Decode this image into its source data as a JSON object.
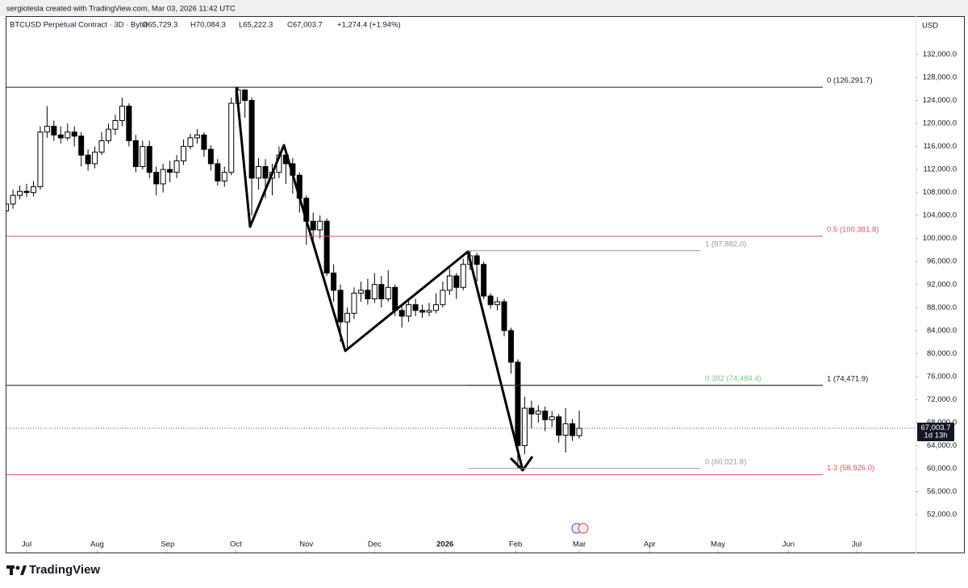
{
  "chart_data": {
    "type": "candlestick",
    "attribution": "sergiotesla created with TradingView.com, Mar 03, 2026 11:42 UTC",
    "title": "BTCUSD Perpetual Contract · 3D · Bybit",
    "ohlc_text": [
      "O65,729.3",
      "H70,084.3",
      "L65,222.3",
      "C67,003.7",
      "+1,274.4 (+1.94%)"
    ],
    "currency": "USD",
    "brand": "TradingView",
    "x": [
      -9,
      -6,
      -3,
      0,
      3,
      6,
      9,
      12,
      15,
      18,
      21,
      24,
      27,
      30,
      33,
      36,
      39,
      42,
      45,
      48,
      51,
      54,
      57,
      60,
      63,
      66,
      69,
      72,
      75,
      78,
      81,
      84,
      87,
      90,
      93,
      96,
      99,
      102,
      105,
      108,
      111,
      114,
      117,
      120,
      123,
      126,
      129,
      132,
      135,
      138,
      141,
      144,
      147,
      150,
      153,
      156,
      159,
      162,
      165,
      168,
      171,
      174,
      177,
      180,
      183,
      186,
      189,
      192,
      195,
      198,
      201,
      204,
      207,
      210,
      213,
      216,
      219,
      222,
      225,
      228,
      231,
      234,
      237,
      240,
      243
    ],
    "open": [
      104800,
      106000,
      107500,
      108200,
      108000,
      109000,
      118500,
      119500,
      118000,
      117500,
      118500,
      117800,
      114500,
      113000,
      115000,
      117000,
      119000,
      120500,
      123000,
      117000,
      112500,
      116000,
      111500,
      109500,
      112000,
      111500,
      113500,
      116000,
      117500,
      118000,
      115500,
      113000,
      110000,
      111500,
      123500,
      125800,
      124000,
      110500,
      112500,
      110500,
      111500,
      114500,
      113000,
      111000,
      107000,
      103000,
      101500,
      103000,
      94000,
      91000,
      85500,
      87000,
      90500,
      91000,
      89500,
      92000,
      89500,
      91500,
      87500,
      86500,
      88500,
      87500,
      87200,
      87500,
      88500,
      91000,
      93500,
      91500,
      95500,
      97000,
      95500,
      90000,
      88500,
      89000,
      84000,
      78500,
      64000,
      70500,
      69500,
      70000,
      68500,
      69000,
      65800,
      67800,
      65729.3
    ],
    "high": [
      106800,
      108500,
      109200,
      109500,
      110000,
      119500,
      123000,
      120500,
      119500,
      120000,
      119500,
      118500,
      115500,
      116000,
      118500,
      120000,
      121500,
      124500,
      123500,
      118000,
      117000,
      117000,
      112500,
      113000,
      113500,
      114500,
      117200,
      118200,
      119000,
      118500,
      116200,
      113800,
      112500,
      124500,
      126291.7,
      126000,
      124500,
      114000,
      113800,
      113000,
      116000,
      115500,
      114000,
      111500,
      107500,
      104500,
      104000,
      103500,
      95500,
      92000,
      88000,
      91500,
      92500,
      93000,
      94000,
      93500,
      94500,
      92000,
      88500,
      89500,
      89500,
      88500,
      88800,
      90500,
      92500,
      94800,
      94000,
      96500,
      97882,
      97500,
      96000,
      90500,
      89800,
      89500,
      84500,
      79000,
      72500,
      71800,
      71000,
      70800,
      70000,
      69500,
      70500,
      68600,
      70084.3
    ],
    "low": [
      104000,
      105200,
      106800,
      107200,
      107300,
      108500,
      117500,
      117000,
      116500,
      117000,
      116000,
      112500,
      111800,
      112200,
      114500,
      116500,
      118000,
      119500,
      116000,
      111500,
      112000,
      110500,
      107500,
      108000,
      109800,
      110500,
      112800,
      115500,
      116500,
      114200,
      111800,
      109200,
      109000,
      111000,
      122500,
      121000,
      104000,
      108500,
      107000,
      107500,
      110500,
      109500,
      107800,
      104500,
      98900,
      99500,
      100000,
      93500,
      89000,
      82000,
      80600,
      86000,
      89000,
      88500,
      88800,
      88000,
      89000,
      86500,
      84500,
      85500,
      86500,
      86200,
      86500,
      87000,
      88000,
      90200,
      89500,
      91000,
      94500,
      92500,
      89500,
      87800,
      87500,
      83000,
      76500,
      60021.8,
      62500,
      67000,
      68000,
      66500,
      67200,
      64500,
      62800,
      64800,
      65222.3
    ],
    "close": [
      106000,
      107500,
      108200,
      108000,
      109000,
      118500,
      119500,
      118000,
      117500,
      118500,
      117800,
      114500,
      113000,
      115000,
      117000,
      119000,
      120500,
      123000,
      117000,
      112500,
      116000,
      111500,
      109500,
      112000,
      111500,
      113500,
      116000,
      117500,
      118000,
      115500,
      113000,
      110000,
      111500,
      123500,
      125800,
      124000,
      110500,
      112500,
      110500,
      111500,
      114500,
      113000,
      111000,
      107000,
      103000,
      101500,
      103000,
      94000,
      91000,
      85500,
      87000,
      90500,
      91000,
      89500,
      92000,
      89500,
      91500,
      87500,
      86500,
      88500,
      87500,
      87200,
      87500,
      88500,
      91000,
      93500,
      91500,
      95500,
      97000,
      95500,
      90000,
      88500,
      89000,
      84000,
      78500,
      64000,
      70500,
      69500,
      70000,
      68500,
      69000,
      65800,
      67800,
      65729.3,
      67003.7
    ],
    "up_color": "#ffffff",
    "down_color": "#000000",
    "xlim": [
      -8.87,
      390.9
    ],
    "xticks": [
      {
        "value": 0,
        "label": "Jul"
      },
      {
        "value": 31,
        "label": "Aug"
      },
      {
        "value": 62,
        "label": "Sep"
      },
      {
        "value": 92,
        "label": "Oct"
      },
      {
        "value": 123,
        "label": "Nov"
      },
      {
        "value": 153,
        "label": "Dec"
      },
      {
        "value": 184,
        "label": "2026"
      },
      {
        "value": 215,
        "label": "Feb"
      },
      {
        "value": 243,
        "label": "Mar"
      },
      {
        "value": 274,
        "label": "Apr"
      },
      {
        "value": 304,
        "label": "May"
      },
      {
        "value": 335,
        "label": "Jun"
      },
      {
        "value": 365,
        "label": "Jul"
      }
    ],
    "ylim": [
      45410,
      138657
    ],
    "yticks": [
      {
        "value": 52000,
        "label": "52,000.0"
      },
      {
        "value": 56000,
        "label": "56,000.0"
      },
      {
        "value": 60000,
        "label": "60,000.0"
      },
      {
        "value": 64000,
        "label": "64,000.0"
      },
      {
        "value": 68000,
        "label": "68,000.0"
      },
      {
        "value": 72000,
        "label": "72,000.0"
      },
      {
        "value": 76000,
        "label": "76,000.0"
      },
      {
        "value": 80000,
        "label": "80,000.0"
      },
      {
        "value": 84000,
        "label": "84,000.0"
      },
      {
        "value": 88000,
        "label": "88,000.0"
      },
      {
        "value": 92000,
        "label": "92,000.0"
      },
      {
        "value": 96000,
        "label": "96,000.0"
      },
      {
        "value": 100000,
        "label": "100,000.0"
      },
      {
        "value": 104000,
        "label": "104,000.0"
      },
      {
        "value": 108000,
        "label": "108,000.0"
      },
      {
        "value": 112000,
        "label": "112,000.0"
      },
      {
        "value": 116000,
        "label": "116,000.0"
      },
      {
        "value": 120000,
        "label": "120,000.0"
      },
      {
        "value": 124000,
        "label": "124,000.0"
      },
      {
        "value": 128000,
        "label": "128,000.0"
      },
      {
        "value": 132000,
        "label": "132,000.0"
      }
    ],
    "levels": [
      {
        "label": "0 (126,291.7)",
        "value": 126291.7,
        "color": "#131722"
      },
      {
        "label": "0.5 (100,381.8)",
        "value": 100381.8,
        "color": "#d9535f"
      },
      {
        "label": "1 (97,882.0)",
        "value": 97882.0,
        "color": "#9598a1"
      },
      {
        "label": "0.382 (74,484.4)",
        "value": 74484.4,
        "color": "#81c784"
      },
      {
        "label": "1 (74,471.9)",
        "value": 74471.9,
        "color": "#131722"
      },
      {
        "label": "0 (60,021.8)",
        "value": 60021.8,
        "color": "#9598a1"
      },
      {
        "label": "1.3 (58,926.0)",
        "value": 58926.0,
        "color": "#d9535f"
      }
    ],
    "last_price": 67003.7,
    "last_price_label": "67,003.7",
    "countdown": "1d 13h"
  }
}
